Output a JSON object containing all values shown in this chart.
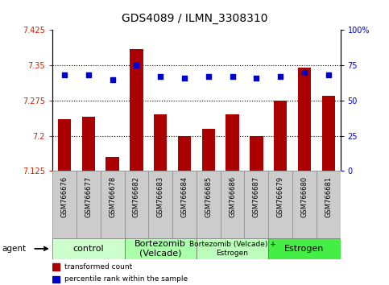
{
  "title": "GDS4089 / ILMN_3308310",
  "samples": [
    "GSM766676",
    "GSM766677",
    "GSM766678",
    "GSM766682",
    "GSM766683",
    "GSM766684",
    "GSM766685",
    "GSM766686",
    "GSM766687",
    "GSM766679",
    "GSM766680",
    "GSM766681"
  ],
  "bar_values": [
    7.235,
    7.24,
    7.155,
    7.385,
    7.245,
    7.2,
    7.215,
    7.245,
    7.2,
    7.275,
    7.345,
    7.285
  ],
  "percentile_values": [
    68,
    68,
    65,
    75,
    67,
    66,
    67,
    67,
    66,
    67,
    70,
    68
  ],
  "ylim_left": [
    7.125,
    7.425
  ],
  "ylim_right": [
    0,
    100
  ],
  "yticks_left": [
    7.125,
    7.2,
    7.275,
    7.35,
    7.425
  ],
  "yticks_right": [
    0,
    25,
    50,
    75,
    100
  ],
  "ytick_labels_left": [
    "7.125",
    "7.2",
    "7.275",
    "7.35",
    "7.425"
  ],
  "ytick_labels_right": [
    "0",
    "25",
    "50",
    "75",
    "100%"
  ],
  "hlines": [
    7.2,
    7.275,
    7.35
  ],
  "bar_color": "#aa0000",
  "dot_color": "#0000cc",
  "bar_bottom": 7.125,
  "groups": [
    {
      "label": "control",
      "start": 0,
      "end": 3,
      "color": "#ccffcc",
      "fontsize": 8
    },
    {
      "label": "Bortezomib\n(Velcade)",
      "start": 3,
      "end": 6,
      "color": "#aaffaa",
      "fontsize": 8
    },
    {
      "label": "Bortezomib (Velcade) +\nEstrogen",
      "start": 6,
      "end": 9,
      "color": "#bbffbb",
      "fontsize": 6.5
    },
    {
      "label": "Estrogen",
      "start": 9,
      "end": 12,
      "color": "#44ee44",
      "fontsize": 8
    }
  ],
  "agent_label": "agent",
  "legend_bar_label": "transformed count",
  "legend_dot_label": "percentile rank within the sample",
  "left_tick_color": "#cc2200",
  "right_tick_color": "#0000cc",
  "sample_bg_color": "#cccccc",
  "bar_width": 0.55,
  "title_fontsize": 10,
  "tick_fontsize": 7,
  "sample_fontsize": 6,
  "group_border_color": "#888888",
  "fig_bg": "#ffffff"
}
